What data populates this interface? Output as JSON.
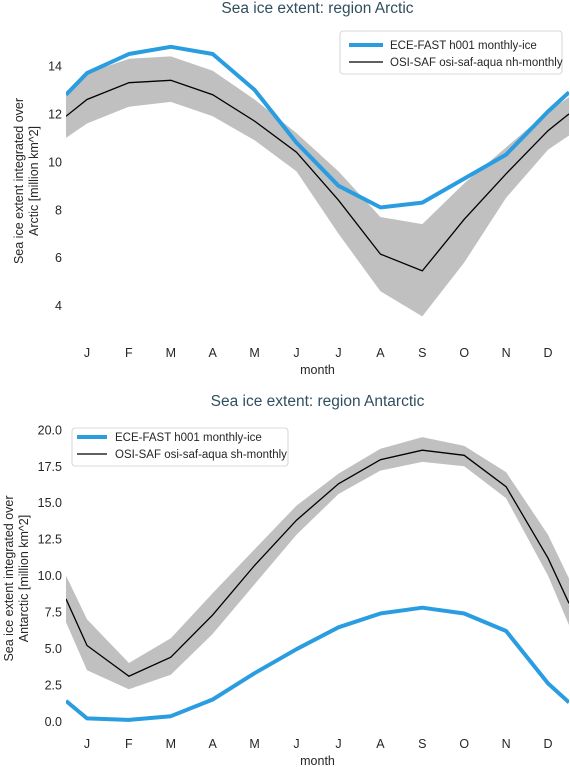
{
  "colors": {
    "model_line": "#2a9de0",
    "obs_line": "#000000",
    "obs_band": "#c0c0c0",
    "title": "#2f4f5f"
  },
  "chart_data": [
    {
      "type": "line",
      "title": "Sea ice extent: region Arctic",
      "xlabel": "month",
      "ylabel_lines": [
        "Sea ice extent integrated over",
        "Arctic [million km^2]"
      ],
      "categories": [
        "J",
        "F",
        "M",
        "A",
        "M",
        "J",
        "J",
        "A",
        "S",
        "O",
        "N",
        "D"
      ],
      "xlim": [
        0.5,
        12.5
      ],
      "ylim": [
        2.9,
        15.5
      ],
      "yticks": [
        4,
        6,
        8,
        10,
        12,
        14
      ],
      "legend_position": "top-right",
      "series": [
        {
          "name": "ECE-FAST h001 monthly-ice",
          "role": "model",
          "x": [
            0.5,
            1,
            2,
            3,
            4,
            5,
            6,
            7,
            8,
            9,
            10,
            11,
            12,
            12.5
          ],
          "values": [
            12.8,
            13.7,
            14.5,
            14.8,
            14.5,
            13.0,
            10.8,
            9.0,
            8.1,
            8.3,
            9.3,
            10.3,
            12.1,
            12.9
          ]
        },
        {
          "name": "OSI-SAF osi-saf-aqua nh-monthly",
          "role": "obs",
          "x": [
            0.5,
            1,
            2,
            3,
            4,
            5,
            6,
            7,
            8,
            9,
            10,
            11,
            12,
            12.5
          ],
          "values": [
            11.9,
            12.6,
            13.3,
            13.4,
            12.8,
            11.7,
            10.4,
            8.4,
            6.15,
            5.45,
            7.6,
            9.5,
            11.3,
            12.0
          ],
          "band_upper": [
            12.8,
            13.7,
            14.3,
            14.4,
            13.8,
            12.6,
            11.2,
            9.6,
            7.7,
            7.4,
            9.1,
            10.6,
            12.1,
            12.7
          ],
          "band_lower": [
            11.0,
            11.6,
            12.3,
            12.5,
            11.9,
            10.9,
            9.6,
            7.0,
            4.6,
            3.55,
            5.8,
            8.5,
            10.5,
            11.1
          ]
        }
      ]
    },
    {
      "type": "line",
      "title": "Sea ice extent: region Antarctic",
      "xlabel": "month",
      "ylabel_lines": [
        "Sea ice extent integrated over",
        "Antarctic [million km^2]"
      ],
      "categories": [
        "J",
        "F",
        "M",
        "A",
        "M",
        "J",
        "J",
        "A",
        "S",
        "O",
        "N",
        "D"
      ],
      "xlim": [
        0.5,
        12.5
      ],
      "ylim": [
        -0.8,
        20.4
      ],
      "yticks": [
        0.0,
        2.5,
        5.0,
        7.5,
        10.0,
        12.5,
        15.0,
        17.5,
        20.0
      ],
      "ytick_labels": [
        "0.0",
        "2.5",
        "5.0",
        "7.5",
        "10.0",
        "12.5",
        "15.0",
        "17.5",
        "20.0"
      ],
      "legend_position": "top-left",
      "series": [
        {
          "name": "ECE-FAST h001 monthly-ice",
          "role": "model",
          "x": [
            0.5,
            1,
            2,
            3,
            4,
            5,
            6,
            7,
            8,
            9,
            10,
            11,
            12,
            12.5
          ],
          "values": [
            1.4,
            0.2,
            0.1,
            0.35,
            1.5,
            3.3,
            4.95,
            6.45,
            7.4,
            7.8,
            7.4,
            6.2,
            2.6,
            1.3
          ]
        },
        {
          "name": "OSI-SAF osi-saf-aqua sh-monthly",
          "role": "obs",
          "x": [
            0.5,
            1,
            2,
            3,
            4,
            5,
            6,
            7,
            8,
            9,
            10,
            11,
            12,
            12.5
          ],
          "values": [
            8.4,
            5.2,
            3.1,
            4.4,
            7.3,
            10.7,
            13.8,
            16.3,
            17.95,
            18.6,
            18.25,
            16.1,
            11.2,
            8.1
          ],
          "band_upper": [
            10.0,
            7.0,
            4.0,
            5.7,
            8.8,
            11.8,
            14.8,
            17.0,
            18.7,
            19.5,
            18.9,
            17.1,
            12.8,
            9.8
          ],
          "band_lower": [
            6.8,
            3.5,
            2.2,
            3.2,
            6.0,
            9.4,
            12.8,
            15.6,
            17.2,
            17.8,
            17.5,
            15.3,
            10.0,
            6.6
          ]
        }
      ]
    }
  ]
}
